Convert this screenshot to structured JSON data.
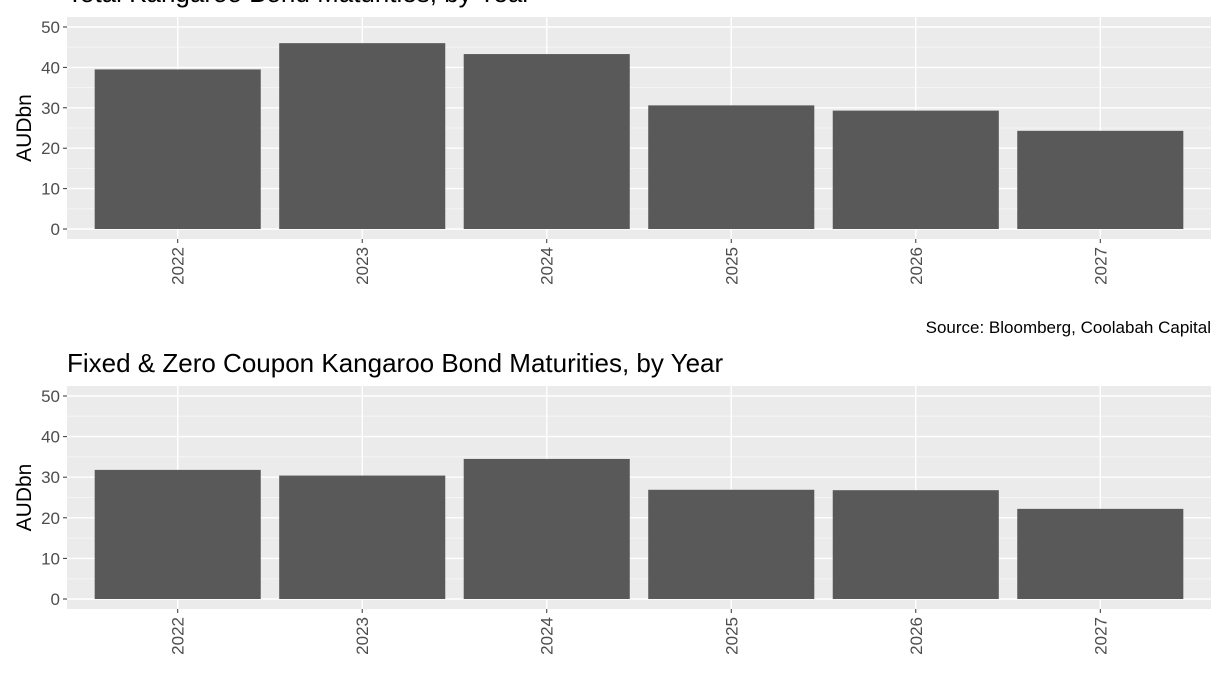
{
  "colors": {
    "panel_background": "#ebebeb",
    "grid_major": "#ffffff",
    "grid_minor": "#f5f5f5",
    "bar_fill": "#595959",
    "tick_text": "#4d4d4d",
    "tick_mark": "#333333"
  },
  "chart_data": [
    {
      "type": "bar",
      "title": "Total Kangaroo Bond Maturities, by Year",
      "xlabel": "",
      "ylabel": "AUDbn",
      "categories": [
        "2022",
        "2023",
        "2024",
        "2025",
        "2026",
        "2027"
      ],
      "values": [
        39.5,
        46,
        43.3,
        30.6,
        29.3,
        24.3
      ],
      "ylim": [
        0,
        50
      ],
      "y_ticks": [
        "0",
        "10",
        "20",
        "30",
        "40",
        "50"
      ],
      "x_tick_rotation": "vertical",
      "grid": true,
      "legend": "none"
    },
    {
      "type": "bar",
      "title": "Fixed & Zero Coupon Kangaroo Bond Maturities, by Year",
      "xlabel": "",
      "ylabel": "AUDbn",
      "categories": [
        "2022",
        "2023",
        "2024",
        "2025",
        "2026",
        "2027"
      ],
      "values": [
        31.8,
        30.4,
        34.5,
        26.9,
        26.8,
        22.2
      ],
      "ylim": [
        0,
        50
      ],
      "y_ticks": [
        "0",
        "10",
        "20",
        "30",
        "40",
        "50"
      ],
      "x_tick_rotation": "vertical",
      "grid": true,
      "legend": "none"
    }
  ],
  "source_note": "Source: Bloomberg, Coolabah Capital"
}
